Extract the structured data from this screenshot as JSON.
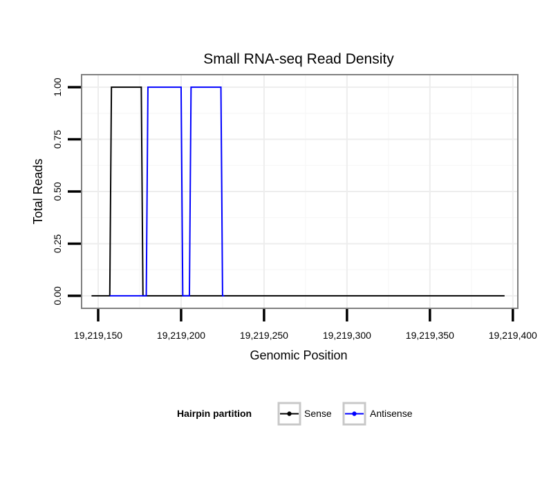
{
  "chart_data": {
    "type": "line",
    "title": "Small RNA-seq Read Density",
    "xlabel": "Genomic Position",
    "ylabel": "Total Reads",
    "xlim": [
      19219140,
      19219403
    ],
    "ylim": [
      -0.06,
      1.06
    ],
    "x_ticks": [
      19219150,
      19219200,
      19219250,
      19219300,
      19219350,
      19219400
    ],
    "x_tick_labels": [
      "19,219,150",
      "19,219,200",
      "19,219,250",
      "19,219,300",
      "19,219,350",
      "19,219,400"
    ],
    "y_ticks": [
      0,
      0.25,
      0.5,
      0.75,
      1
    ],
    "y_tick_labels": [
      "0.00",
      "0.25",
      "0.50",
      "0.75",
      "1.00"
    ],
    "grid": true,
    "legend": {
      "title": "Hairpin partition",
      "position": "bottom",
      "entries": [
        "Sense",
        "Antisense"
      ]
    },
    "series": [
      {
        "name": "Sense",
        "color": "#000000",
        "points": [
          [
            19219146,
            0
          ],
          [
            19219157,
            0
          ],
          [
            19219158,
            1
          ],
          [
            19219176,
            1
          ],
          [
            19219177,
            0
          ],
          [
            19219395,
            0
          ]
        ]
      },
      {
        "name": "Antisense",
        "color": "#0000ff",
        "points": [
          [
            19219157,
            0
          ],
          [
            19219179,
            0
          ],
          [
            19219180,
            1
          ],
          [
            19219200,
            1
          ],
          [
            19219201,
            0
          ],
          [
            19219205,
            0
          ],
          [
            19219206,
            1
          ],
          [
            19219224,
            1
          ],
          [
            19219225,
            0
          ],
          [
            19219226,
            0
          ]
        ]
      }
    ]
  }
}
